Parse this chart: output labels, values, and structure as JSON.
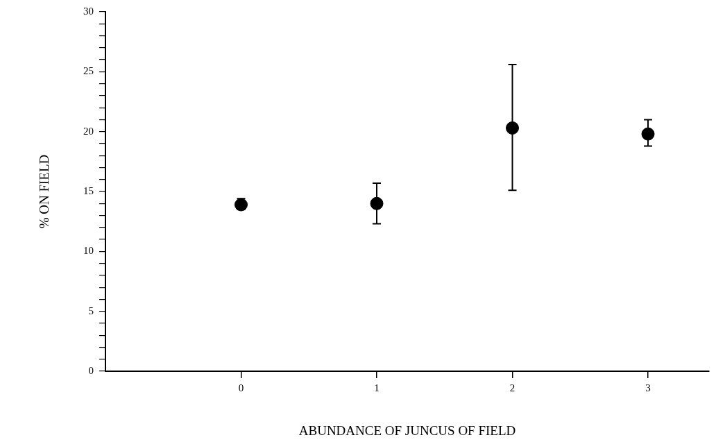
{
  "chart_data": {
    "type": "scatter",
    "xlabel": "ABUNDANCE OF JUNCUS OF FIELD",
    "ylabel": "% ON FIELD",
    "x": [
      0,
      1,
      2,
      3
    ],
    "series": [
      {
        "color": "#000000",
        "values": [
          13.9,
          14.0,
          20.3,
          19.8
        ],
        "errors": [
          [
            13.5,
            14.4
          ],
          [
            12.3,
            15.7
          ],
          [
            15.1,
            25.6
          ],
          [
            18.8,
            21.0
          ]
        ]
      }
    ],
    "marker": "circle",
    "xlim": [
      -1,
      3.45
    ],
    "xticks": [
      0,
      1,
      2,
      3
    ],
    "ylim": [
      0,
      30
    ],
    "yticks": [
      0,
      {
        "value": 1,
        "label": null
      },
      {
        "value": 2,
        "label": null
      },
      {
        "value": 3,
        "label": null
      },
      {
        "value": 4,
        "label": null
      },
      5,
      {
        "value": 6,
        "label": null
      },
      {
        "value": 7,
        "label": null
      },
      {
        "value": 8,
        "label": null
      },
      {
        "value": 9,
        "label": null
      },
      10,
      {
        "value": 11,
        "label": null
      },
      {
        "value": 12,
        "label": null
      },
      {
        "value": 13,
        "label": null
      },
      {
        "value": 14,
        "label": null
      },
      15,
      {
        "value": 16,
        "label": null
      },
      {
        "value": 17,
        "label": null
      },
      {
        "value": 18,
        "label": null
      },
      {
        "value": 19,
        "label": null
      },
      20,
      {
        "value": 21,
        "label": null
      },
      {
        "value": 22,
        "label": null
      },
      {
        "value": 23,
        "label": null
      },
      {
        "value": 24,
        "label": null
      },
      25,
      {
        "value": 26,
        "label": null
      },
      {
        "value": 27,
        "label": null
      },
      {
        "value": 28,
        "label": null
      },
      {
        "value": 29,
        "label": null
      },
      30
    ],
    "grid": false,
    "legend": false
  }
}
